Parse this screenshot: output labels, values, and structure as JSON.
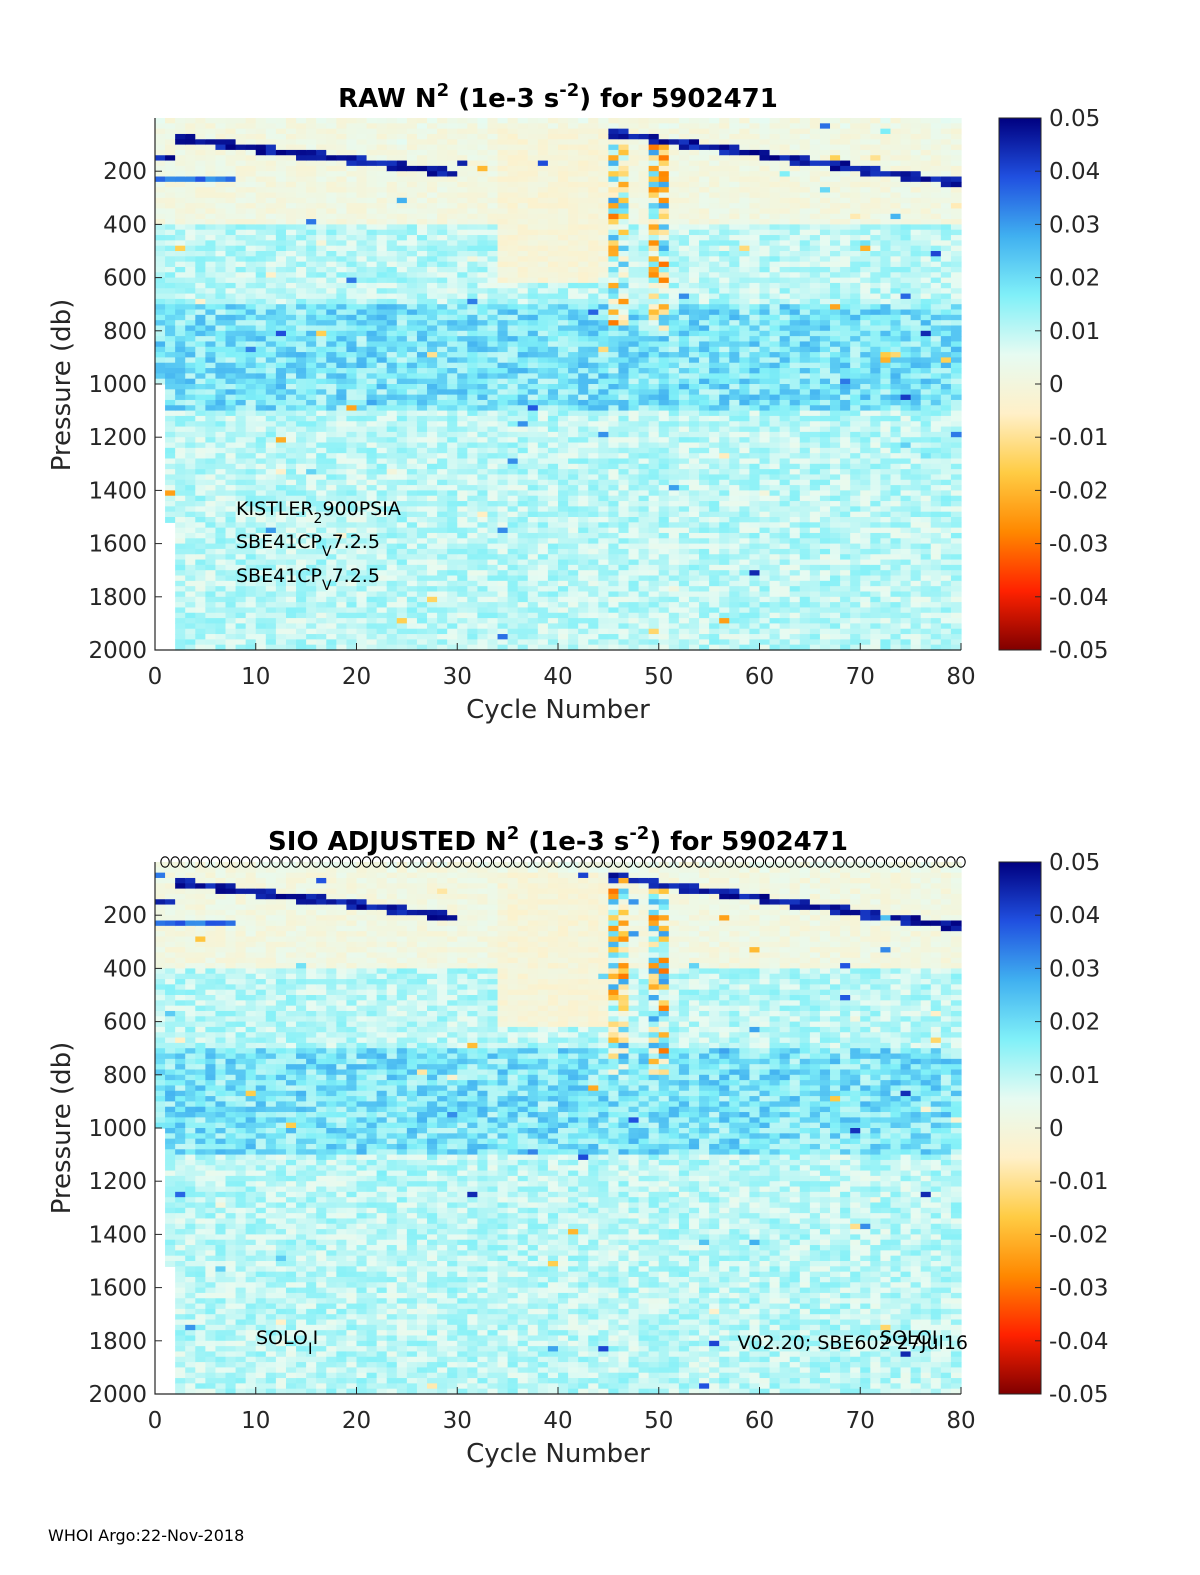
{
  "footer": "WHOI Argo:22-Nov-2018",
  "colormap": {
    "name": "blue-white-red diverging",
    "stops": [
      "#800000",
      "#ff2200",
      "#ff8800",
      "#ffcc44",
      "#fff0c8",
      "#e6fbf2",
      "#80f0f8",
      "#40b0f0",
      "#2050e0",
      "#000080"
    ]
  },
  "chart_data": [
    {
      "type": "heatmap",
      "title_parts": [
        "RAW N",
        "2",
        " (1e-3 s",
        "-2",
        ") for 5902471"
      ],
      "xlabel": "Cycle Number",
      "ylabel": "Pressure (db)",
      "xlim": [
        0,
        80
      ],
      "ylim": [
        2000,
        0
      ],
      "xticks": [
        "0",
        "10",
        "20",
        "30",
        "40",
        "50",
        "60",
        "70",
        "80"
      ],
      "yticks": [
        "200",
        "400",
        "600",
        "800",
        "1000",
        "1200",
        "1400",
        "1600",
        "1800",
        "2000"
      ],
      "colorbar": {
        "lim": [
          -0.05,
          0.05
        ],
        "ticks": [
          "0.05",
          "0.04",
          "0.03",
          "0.02",
          "0.01",
          "0",
          "-0.01",
          "-0.02",
          "-0.03",
          "-0.04",
          "-0.05"
        ]
      },
      "annotations": [
        {
          "parts": [
            "KISTLER",
            "2",
            "900PSIA"
          ]
        },
        {
          "parts": [
            "SBE41CP",
            "V",
            "7.2.5"
          ]
        },
        {
          "parts": [
            "SBE41CP",
            "V",
            "7.2.5"
          ]
        }
      ],
      "max_depth": [
        [
          1,
          1000
        ],
        [
          2,
          1510
        ],
        [
          5,
          2000
        ],
        [
          80,
          2000
        ]
      ],
      "features": "Strong positive N2 (0.04-0.05) along the seasonal thermocline near 50-150 db; weakly negative values (about -0.003) in a mixed region between cycles 35-45 down to 600 db; background 0.005-0.02 below 600 db."
    },
    {
      "type": "heatmap",
      "title_parts": [
        "SIO  ADJUSTED N",
        "2",
        " (1e-3 s",
        "-2",
        ") for 5902471"
      ],
      "xlabel": "Cycle Number",
      "ylabel": "Pressure (db)",
      "xlim": [
        0,
        80
      ],
      "ylim": [
        2000,
        0
      ],
      "xticks": [
        "0",
        "10",
        "20",
        "30",
        "40",
        "50",
        "60",
        "70",
        "80"
      ],
      "yticks": [
        "200",
        "400",
        "600",
        "800",
        "1000",
        "1200",
        "1400",
        "1600",
        "1800",
        "2000"
      ],
      "colorbar": {
        "lim": [
          -0.05,
          0.05
        ],
        "ticks": [
          "0.05",
          "0.04",
          "0.03",
          "0.02",
          "0.01",
          "0",
          "-0.01",
          "-0.02",
          "-0.03",
          "-0.04",
          "-0.05"
        ]
      },
      "annotations": [
        {
          "parts": [
            "SOLO",
            "I",
            "I"
          ]
        },
        {
          "parts": [
            "V02.20; SBE602 27Jul16"
          ]
        },
        {
          "parts": [
            "SOLO",
            "",
            "I"
          ]
        }
      ],
      "markers": {
        "symbol": "circle",
        "y": 0,
        "x_from": 1,
        "x_to": 80
      },
      "max_depth": [
        [
          1,
          1000
        ],
        [
          2,
          1510
        ],
        [
          5,
          2000
        ],
        [
          80,
          2000
        ]
      ],
      "features": "Same structure as the raw field after adjustment."
    }
  ]
}
